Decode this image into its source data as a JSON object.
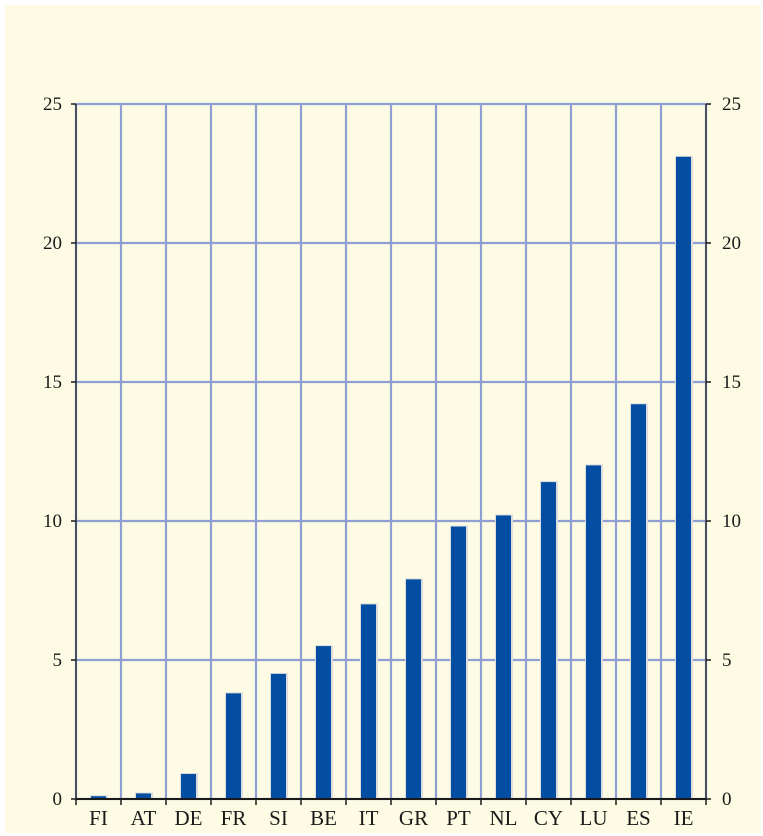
{
  "chart_data": {
    "type": "bar",
    "categories": [
      "FI",
      "AT",
      "DE",
      "FR",
      "SI",
      "BE",
      "IT",
      "GR",
      "PT",
      "NL",
      "CY",
      "LU",
      "ES",
      "IE"
    ],
    "series": [
      {
        "values": [
          0.1,
          0.2,
          0.9,
          3.8,
          4.5,
          5.5,
          7.0,
          7.9,
          9.8,
          10.2,
          11.4,
          12.0,
          14.2,
          23.1
        ]
      }
    ],
    "ylim": [
      0,
      25
    ],
    "yticks": [
      0,
      5,
      10,
      15,
      20,
      25
    ],
    "y_axis_both_sides": true,
    "grid": true,
    "colors": {
      "background": "#fdfbe3",
      "grid": "#8f9fd3",
      "bar": "#034ea2",
      "bar_edge": "#dcdcdc",
      "axis": "#1a1a1a"
    }
  }
}
